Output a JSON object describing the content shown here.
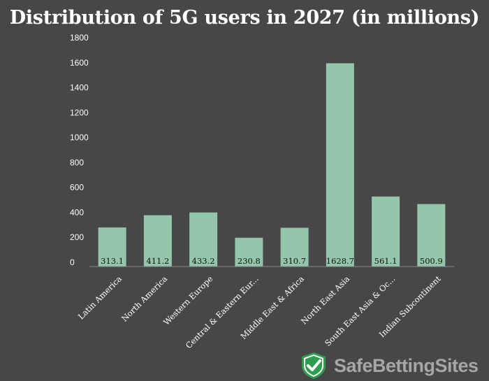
{
  "chart_data": {
    "type": "bar",
    "title": "Distribution of 5G users in 2027 (in millions)",
    "categories": [
      "Latin America",
      "North America",
      "Western Europe",
      "Central & Eastern Eur...",
      "Middle East & Africa",
      "North East Asia",
      "South East Asia & Oc...",
      "Indian Subcontinent"
    ],
    "values": [
      313.1,
      411.2,
      433.2,
      230.8,
      310.7,
      1628.7,
      561.1,
      500.9
    ],
    "data_labels": [
      "313.1",
      "411.2",
      "433.2",
      "230.8",
      "310.7",
      "1628.7",
      "561.1",
      "500.9"
    ],
    "yticks": [
      "0",
      "200",
      "400",
      "600",
      "800",
      "1000",
      "1200",
      "1400",
      "1600",
      "1800"
    ],
    "ylim": [
      0,
      1800
    ],
    "grid": false,
    "legend": "none",
    "colors": {
      "bar": "#93c6aa",
      "background": "#474747",
      "axis": "#8a8a8a"
    }
  },
  "branding": {
    "name": "SafeBettingSites",
    "logo": "shield-check-icon",
    "shield_color": "#2e9e4e"
  }
}
